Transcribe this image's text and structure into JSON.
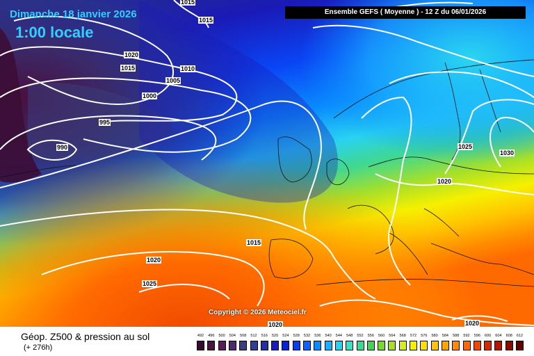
{
  "header": {
    "date_line": "Dimanche 18 janvier 2026",
    "time_line": "1:00 locale",
    "run_info": "Ensemble GEFS  ( Moyenne )  - 12 Z du 06/01/2026"
  },
  "copyright": "Copyright © 2026 Meteociel.fr",
  "isobar_labels": [
    "1015",
    "1015",
    "1020",
    "1015",
    "1010",
    "1005",
    "1000",
    "995",
    "990",
    "1025",
    "1030",
    "1020",
    "1015",
    "1020",
    "1025",
    "1020",
    "1020"
  ],
  "footer": {
    "title": "Géop. Z500 & pression au sol",
    "step": "(+ 276h)"
  },
  "legend": {
    "values": [
      "492",
      "496",
      "500",
      "504",
      "508",
      "512",
      "516",
      "520",
      "524",
      "528",
      "532",
      "536",
      "540",
      "544",
      "548",
      "552",
      "556",
      "560",
      "564",
      "568",
      "572",
      "576",
      "580",
      "584",
      "588",
      "592",
      "596",
      "600",
      "604",
      "608",
      "612"
    ],
    "colors": [
      "#3a0a2e",
      "#4c1340",
      "#5a1d55",
      "#4a2a6a",
      "#3b3b7e",
      "#2f3f92",
      "#232f9c",
      "#1a1ab8",
      "#0a22d8",
      "#0840f0",
      "#0a62ff",
      "#0a8cff",
      "#1ab0ff",
      "#28d2f2",
      "#3ee0c8",
      "#40d890",
      "#48d058",
      "#78d830",
      "#a8e028",
      "#d8ea20",
      "#f6f000",
      "#ffe000",
      "#ffc400",
      "#ffa400",
      "#ff8a00",
      "#ff6a00",
      "#f04800",
      "#d62a00",
      "#b81400",
      "#8a0a00",
      "#600000"
    ]
  }
}
